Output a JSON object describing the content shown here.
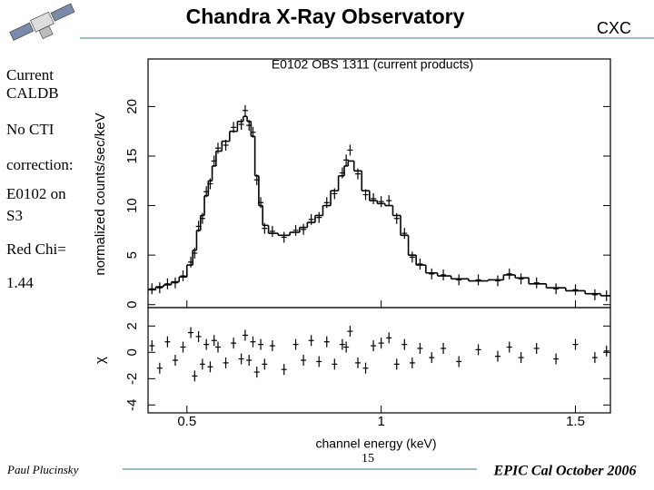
{
  "slide": {
    "title": "Chandra X-Ray Observatory",
    "corner": "CXC",
    "sidebar": [
      "Current",
      "CALDB",
      "No CTI",
      "correction:",
      "E0102 on",
      "S3",
      "Red Chi=",
      "1.44"
    ],
    "footer_left": "Paul Plucinsky",
    "page_number": "15",
    "footer_right": "EPIC Cal October 2006"
  },
  "chart_data": [
    {
      "type": "step",
      "title": "E0102 OBS 1311 (current products)",
      "ylabel": "normalized counts/sec/keV",
      "x": [
        0.41,
        0.43,
        0.45,
        0.47,
        0.49,
        0.51,
        0.52,
        0.53,
        0.54,
        0.55,
        0.56,
        0.57,
        0.58,
        0.6,
        0.62,
        0.64,
        0.65,
        0.66,
        0.67,
        0.68,
        0.69,
        0.7,
        0.72,
        0.75,
        0.78,
        0.8,
        0.82,
        0.84,
        0.86,
        0.88,
        0.9,
        0.91,
        0.92,
        0.94,
        0.96,
        0.98,
        1.0,
        1.02,
        1.04,
        1.06,
        1.08,
        1.1,
        1.13,
        1.16,
        1.2,
        1.25,
        1.3,
        1.33,
        1.36,
        1.4,
        1.45,
        1.5,
        1.55,
        1.58
      ],
      "series": [
        {
          "style": "step",
          "color": "#000000",
          "values": [
            1.5,
            1.8,
            2,
            2.3,
            2.8,
            4,
            5.5,
            7.5,
            9,
            11,
            12.5,
            14,
            15.5,
            16.5,
            17.5,
            18.5,
            19,
            18.5,
            17,
            13,
            10,
            8,
            7.2,
            7,
            7.3,
            7.8,
            8.3,
            9,
            10,
            11.5,
            13,
            14,
            14.5,
            13.5,
            11.5,
            10.5,
            10.2,
            10,
            9,
            7,
            5,
            4,
            3.2,
            2.9,
            2.6,
            2.4,
            2.5,
            3,
            2.7,
            2.1,
            1.7,
            1.4,
            1.1,
            0.9
          ]
        },
        {
          "style": "cross",
          "color": "#000000",
          "values": [
            1.6,
            1.7,
            2.1,
            2.2,
            2.9,
            4.3,
            5.2,
            7.9,
            8.7,
            11.4,
            12.2,
            14.5,
            15.8,
            16.1,
            17.9,
            18.2,
            19.6,
            18.1,
            17.4,
            12.6,
            10.3,
            7.7,
            7.4,
            6.8,
            7.5,
            7.6,
            8.6,
            8.8,
            10.3,
            11.2,
            13.3,
            14.6,
            15.6,
            13.2,
            11.1,
            10.7,
            10.4,
            10.5,
            8.7,
            7.2,
            4.8,
            4.1,
            3.1,
            3.0,
            2.5,
            2.5,
            2.4,
            3.1,
            2.6,
            2.2,
            1.6,
            1.5,
            1.0,
            0.9
          ]
        }
      ],
      "xlim": [
        0.4,
        1.59
      ],
      "ylim": [
        -0.3,
        24.8
      ],
      "yticks": [
        0,
        5,
        10,
        15,
        20
      ]
    },
    {
      "type": "scatter",
      "ylabel": "χ",
      "xlabel": "channel energy (keV)",
      "x": [
        0.41,
        0.43,
        0.45,
        0.47,
        0.49,
        0.51,
        0.52,
        0.53,
        0.54,
        0.55,
        0.56,
        0.57,
        0.58,
        0.6,
        0.62,
        0.64,
        0.65,
        0.66,
        0.67,
        0.68,
        0.69,
        0.7,
        0.72,
        0.75,
        0.78,
        0.8,
        0.82,
        0.84,
        0.86,
        0.88,
        0.9,
        0.91,
        0.92,
        0.94,
        0.96,
        0.98,
        1.0,
        1.02,
        1.04,
        1.06,
        1.08,
        1.1,
        1.13,
        1.16,
        1.2,
        1.25,
        1.3,
        1.33,
        1.36,
        1.4,
        1.45,
        1.5,
        1.55,
        1.58
      ],
      "values": [
        0.5,
        -1.2,
        0.8,
        -0.6,
        0.4,
        1.5,
        -1.8,
        1.2,
        -0.9,
        0.6,
        -1.1,
        0.9,
        0.4,
        -0.8,
        0.7,
        -0.5,
        1.3,
        -0.6,
        0.8,
        -1.5,
        0.6,
        -0.9,
        0.5,
        -1.3,
        0.6,
        -0.6,
        0.9,
        -0.7,
        0.8,
        -0.9,
        0.6,
        0.4,
        1.6,
        -0.8,
        -1.2,
        0.5,
        0.7,
        1.1,
        -0.9,
        0.6,
        -0.8,
        0.3,
        -0.4,
        0.3,
        -0.7,
        0.2,
        -0.3,
        0.4,
        -0.4,
        0.3,
        -0.5,
        0.6,
        -0.4,
        0.1
      ],
      "color": "#000000",
      "xlim": [
        0.4,
        1.59
      ],
      "ylim": [
        -4.6,
        3.4
      ],
      "xticks": [
        0.5,
        1,
        1.5
      ],
      "yticks": [
        -4,
        -2,
        0,
        2
      ]
    }
  ]
}
